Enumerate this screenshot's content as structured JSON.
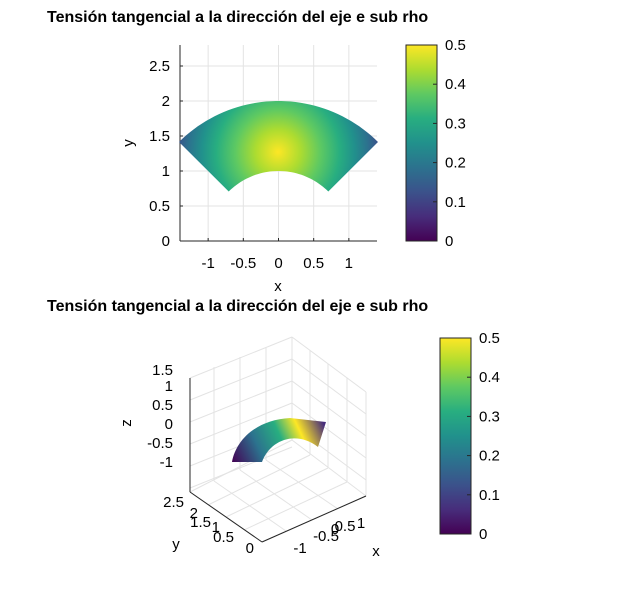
{
  "chart_data": [
    {
      "type": "heatmap",
      "view": "2d",
      "title": "Tensión tangencial a la dirección del eje e sub rho",
      "xlabel": "x",
      "ylabel": "y",
      "xlim": [
        -1.4,
        1.4
      ],
      "ylim": [
        0,
        2.8
      ],
      "xticks": [
        "-1",
        "-0.5",
        "0",
        "0.5",
        "1"
      ],
      "xtick_values": [
        -1,
        -0.5,
        0,
        0.5,
        1
      ],
      "yticks": [
        "0",
        "0.5",
        "1",
        "1.5",
        "2",
        "2.5"
      ],
      "ytick_values": [
        0,
        0.5,
        1,
        1.5,
        2,
        2.5
      ],
      "grid": true,
      "region": {
        "r_inner": 1.0,
        "r_outer": 2.0,
        "theta_deg": [
          45,
          135
        ]
      },
      "field": "values peak 0.5 at (x=0, y=1.2), decreasing toward sector edges to 0",
      "colorbar": {
        "min": 0,
        "max": 0.5,
        "ticks": [
          "0",
          "0.1",
          "0.2",
          "0.3",
          "0.4",
          "0.5"
        ],
        "colormap": "viridis"
      }
    },
    {
      "type": "heatmap",
      "view": "3d",
      "title": "Tensión tangencial a la dirección del eje e sub rho",
      "xlabel": "x",
      "ylabel": "y",
      "zlabel": "z",
      "xticks": [
        "-1",
        "-0.5",
        "0",
        "0.5",
        "1"
      ],
      "yticks": [
        "0",
        "0.5",
        "1",
        "1.5",
        "2",
        "2.5"
      ],
      "zticks": [
        "-1",
        "-0.5",
        "0",
        "0.5",
        "1",
        "1.5"
      ],
      "grid": true,
      "colorbar": {
        "min": 0,
        "max": 0.5,
        "ticks": [
          "0",
          "0.1",
          "0.2",
          "0.3",
          "0.4",
          "0.5"
        ],
        "colormap": "viridis"
      }
    }
  ]
}
